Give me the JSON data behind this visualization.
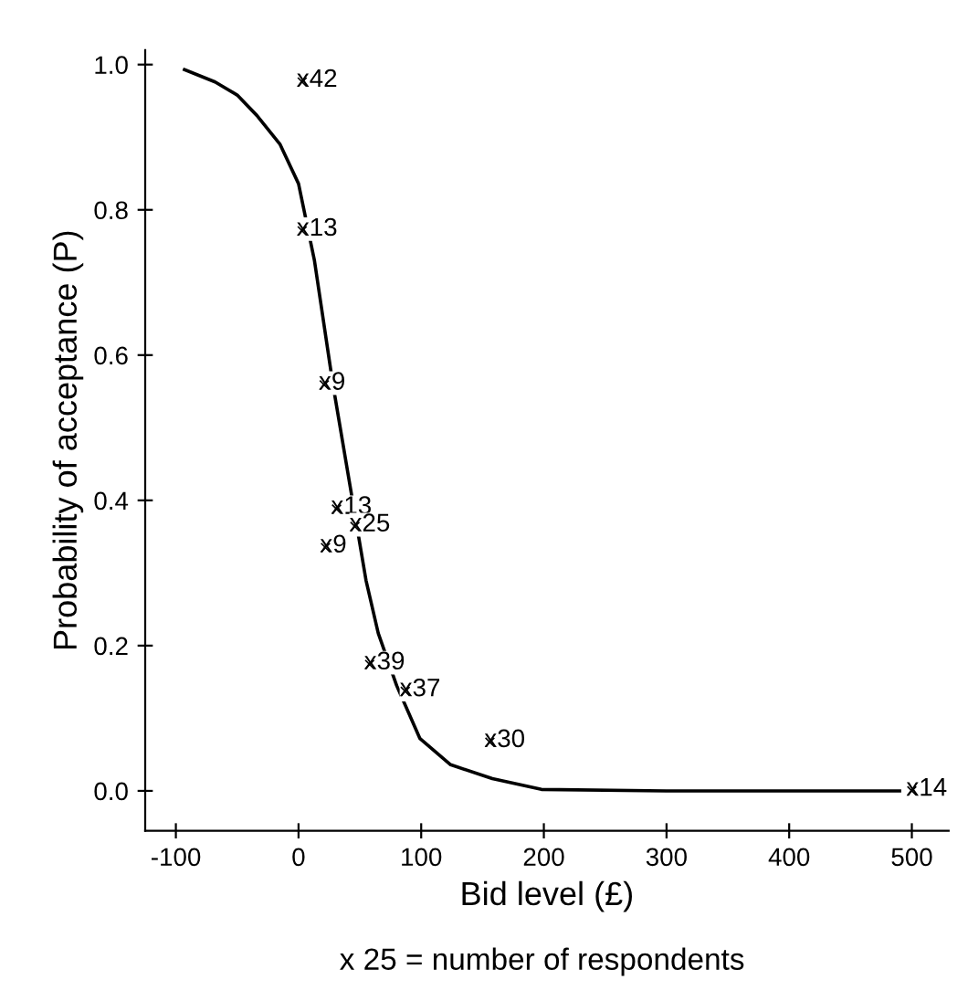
{
  "chart_data": {
    "type": "line",
    "xlabel": "Bid level (£)",
    "ylabel": "Probability of acceptance (P)",
    "x": [
      -93,
      -68,
      -50,
      -34,
      -15,
      0,
      13,
      28,
      55,
      65,
      80,
      99,
      124,
      158,
      198,
      300,
      400,
      490
    ],
    "series": [
      {
        "color": "#000000",
        "values": [
          0.993,
          0.976,
          0.958,
          0.93,
          0.89,
          0.836,
          0.73,
          0.56,
          0.29,
          0.217,
          0.145,
          0.072,
          0.036,
          0.017,
          0.002,
          0.0,
          0.0,
          0.0
        ]
      },
      {
        "type": "scatter",
        "marker": "cross",
        "color": "#000000",
        "x": [
          3,
          3,
          21,
          31,
          46,
          22,
          58,
          87,
          156,
          500
        ],
        "values": [
          0.976,
          0.771,
          0.559,
          0.388,
          0.364,
          0.335,
          0.174,
          0.137,
          0.067,
          0.0
        ]
      }
    ],
    "annotations": [
      {
        "text": "x42",
        "x": 3,
        "y": 0.976
      },
      {
        "text": "x13",
        "x": 3,
        "y": 0.771
      },
      {
        "text": "x9",
        "x": 21,
        "y": 0.559
      },
      {
        "text": "x13",
        "x": 31,
        "y": 0.388
      },
      {
        "text": "x25",
        "x": 46,
        "y": 0.364
      },
      {
        "text": "x9",
        "x": 22,
        "y": 0.335
      },
      {
        "text": "x39",
        "x": 58,
        "y": 0.174
      },
      {
        "text": "x37",
        "x": 87,
        "y": 0.137
      },
      {
        "text": "x30",
        "x": 156,
        "y": 0.067
      },
      {
        "text": "x14",
        "x": 500,
        "y": 0.0
      },
      "x 25 = number of respondents"
    ],
    "xlim": [
      -125,
      530
    ],
    "ylim": [
      -0.055,
      1.02
    ],
    "xticks": [
      -100,
      0,
      100,
      200,
      300,
      400,
      500
    ],
    "yticks": [
      {
        "value": 0,
        "label": "0.0"
      },
      {
        "value": 0.2,
        "label": "0.2"
      },
      {
        "value": 0.4,
        "label": "0.4"
      },
      {
        "value": 0.6,
        "label": "0.6"
      },
      {
        "value": 0.8,
        "label": "0.8"
      },
      {
        "value": 1.0,
        "label": "1.0"
      }
    ],
    "grid": false,
    "marker": "none",
    "line_style": "solid"
  }
}
